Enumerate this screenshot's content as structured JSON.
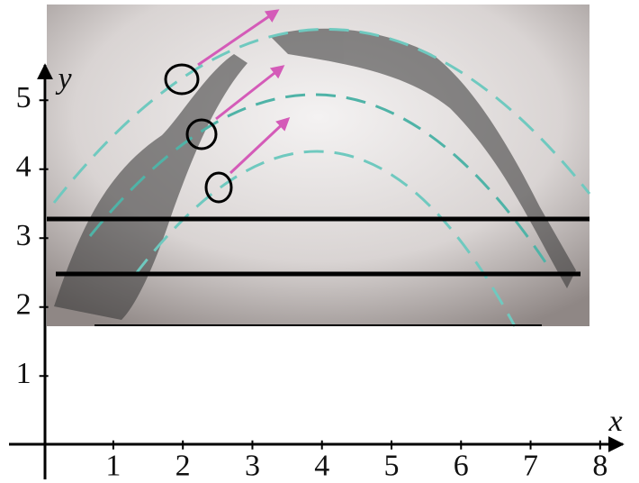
{
  "chart_data": {
    "type": "axes",
    "x_label": "x",
    "y_label": "y",
    "xlim": [
      -0.5,
      8.3
    ],
    "ylim": [
      -0.5,
      5.5
    ],
    "xticks": [
      1,
      2,
      3,
      4,
      5,
      6,
      7,
      8
    ],
    "yticks": [
      1,
      2,
      3,
      4,
      5
    ]
  }
}
